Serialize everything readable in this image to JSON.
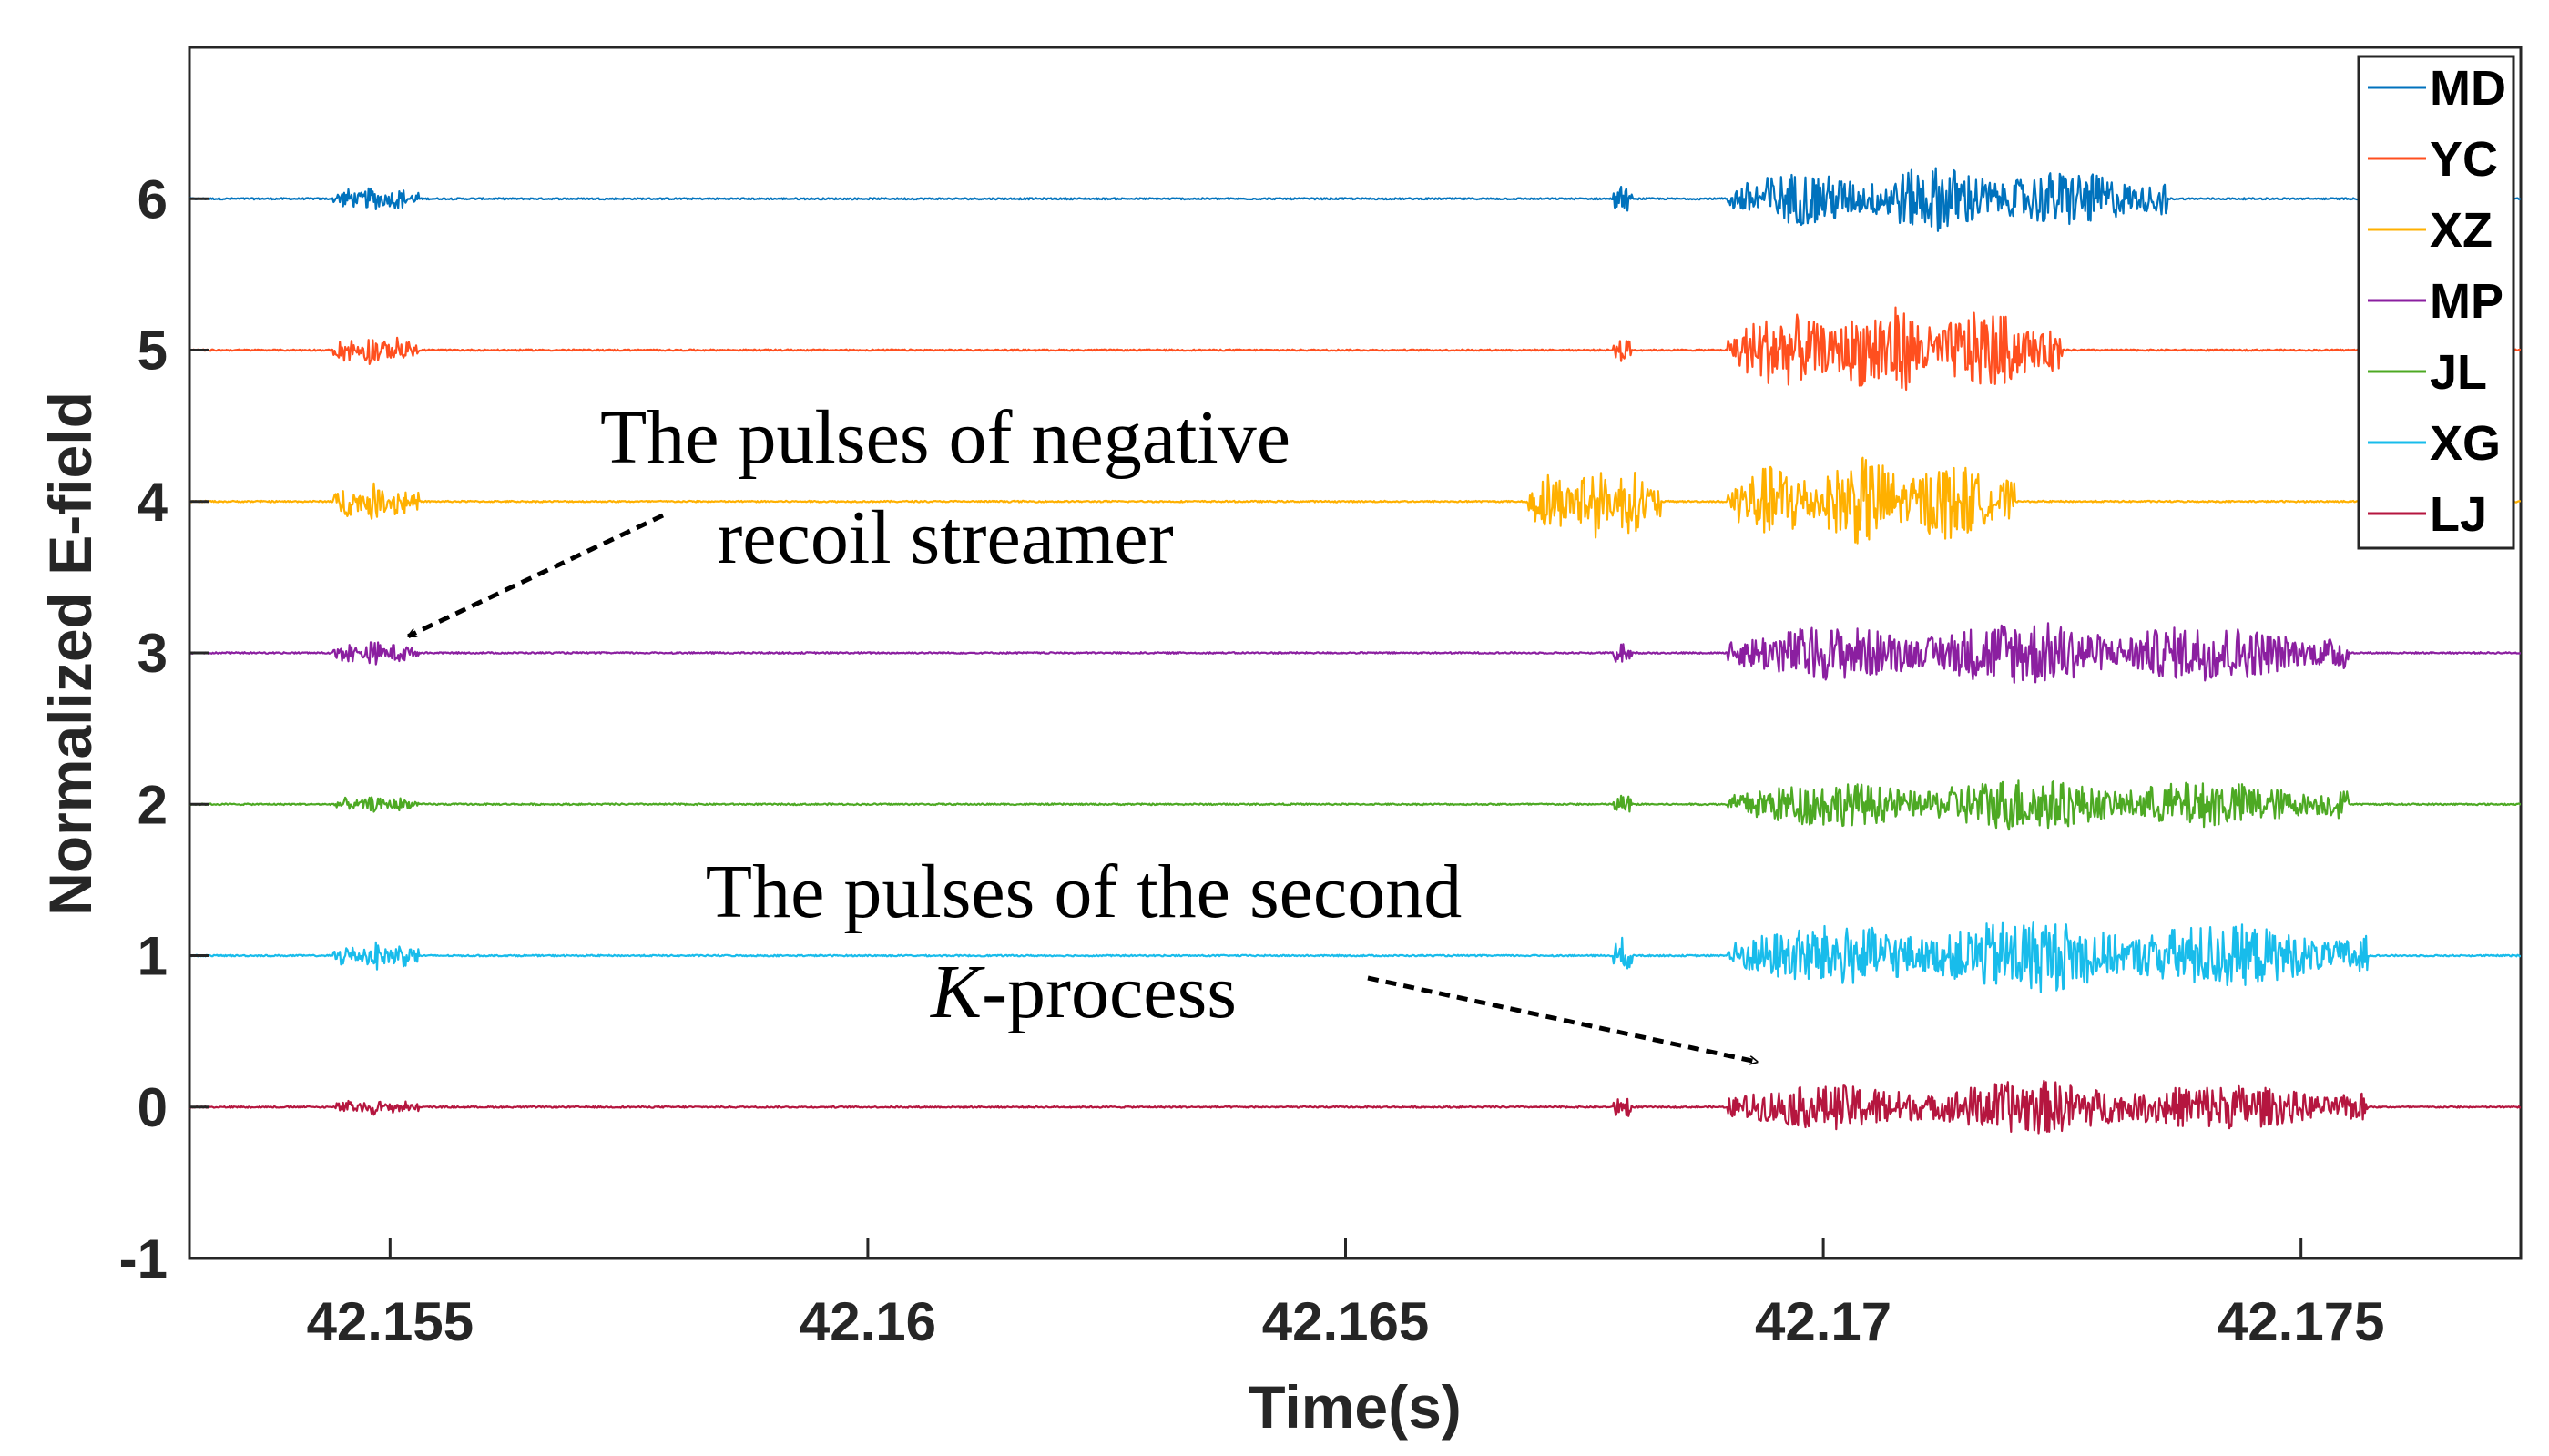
{
  "chart_data": {
    "type": "line",
    "title": "",
    "xlabel": "Time(s)",
    "ylabel": "Normalized E-field",
    "xlim": [
      42.1529,
      42.1773
    ],
    "ylim": [
      -1,
      7
    ],
    "xticks": [
      42.155,
      42.16,
      42.165,
      42.17,
      42.175
    ],
    "xtick_labels": [
      "42.155",
      "42.16",
      "42.165",
      "42.17",
      "42.175"
    ],
    "yticks": [
      -1,
      0,
      1,
      2,
      3,
      4,
      5,
      6
    ],
    "ytick_labels": [
      "-1",
      "0",
      "1",
      "2",
      "3",
      "4",
      "5",
      "6"
    ],
    "grid": false,
    "legend_position": "top-right",
    "series": [
      {
        "name": "MD",
        "color": "#0072BD",
        "offset": 6,
        "activity": [
          {
            "x": [
              42.1544,
              42.1553
            ],
            "amp": 0.08
          },
          {
            "x": [
              42.1678,
              42.168
            ],
            "amp": 0.1
          },
          {
            "x": [
              42.169,
              42.1736
            ],
            "amp": 0.22
          }
        ]
      },
      {
        "name": "YC",
        "color": "#FF4F1F",
        "offset": 5,
        "activity": [
          {
            "x": [
              42.1544,
              42.1553
            ],
            "amp": 0.1
          },
          {
            "x": [
              42.1678,
              42.168
            ],
            "amp": 0.1
          },
          {
            "x": [
              42.169,
              42.1725
            ],
            "amp": 0.3
          }
        ]
      },
      {
        "name": "XZ",
        "color": "#FFB000",
        "offset": 4,
        "activity": [
          {
            "x": [
              42.1544,
              42.1553
            ],
            "amp": 0.12
          },
          {
            "x": [
              42.1669,
              42.1683
            ],
            "amp": 0.25
          },
          {
            "x": [
              42.169,
              42.172
            ],
            "amp": 0.3
          }
        ]
      },
      {
        "name": "MP",
        "color": "#8B1FA0",
        "offset": 3,
        "activity": [
          {
            "x": [
              42.1544,
              42.1553
            ],
            "amp": 0.08
          },
          {
            "x": [
              42.1678,
              42.168
            ],
            "amp": 0.08
          },
          {
            "x": [
              42.169,
              42.1755
            ],
            "amp": 0.22
          }
        ]
      },
      {
        "name": "JL",
        "color": "#4DA923",
        "offset": 2,
        "activity": [
          {
            "x": [
              42.1544,
              42.1553
            ],
            "amp": 0.05
          },
          {
            "x": [
              42.1678,
              42.168
            ],
            "amp": 0.08
          },
          {
            "x": [
              42.169,
              42.1755
            ],
            "amp": 0.18
          }
        ]
      },
      {
        "name": "XG",
        "color": "#18BCEB",
        "offset": 1,
        "activity": [
          {
            "x": [
              42.1544,
              42.1553
            ],
            "amp": 0.1
          },
          {
            "x": [
              42.1678,
              42.168
            ],
            "amp": 0.12
          },
          {
            "x": [
              42.169,
              42.1757
            ],
            "amp": 0.25
          }
        ]
      },
      {
        "name": "LJ",
        "color": "#B5163F",
        "offset": 0,
        "activity": [
          {
            "x": [
              42.1544,
              42.1553
            ],
            "amp": 0.05
          },
          {
            "x": [
              42.1678,
              42.168
            ],
            "amp": 0.08
          },
          {
            "x": [
              42.169,
              42.1757
            ],
            "amp": 0.18
          }
        ]
      }
    ],
    "annotations": [
      {
        "lines": [
          "The pulses of negative",
          "recoil streamer"
        ],
        "arrow_to": {
          "x": 42.155,
          "y": 3.05
        }
      },
      {
        "lines": [
          "The pulses of the second",
          "K",
          "-process"
        ],
        "arrow_to": {
          "x": 42.1695,
          "y": 0.25
        }
      }
    ]
  }
}
